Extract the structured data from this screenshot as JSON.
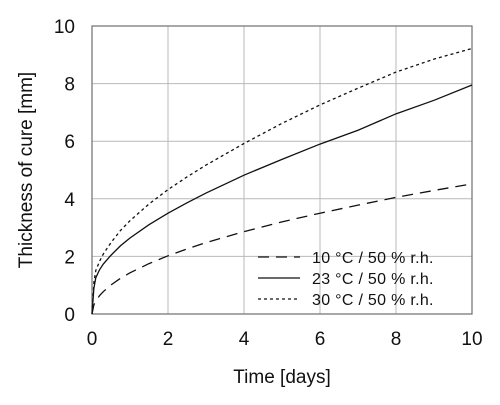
{
  "chart_data": {
    "type": "line",
    "title": "",
    "xlabel": "Time [days]",
    "ylabel": "Thickness of cure [mm]",
    "xlim": [
      0,
      10
    ],
    "ylim": [
      0,
      10
    ],
    "xticks": [
      "0",
      "2",
      "4",
      "6",
      "8",
      "10"
    ],
    "yticks": [
      "0",
      "2",
      "4",
      "6",
      "8",
      "10"
    ],
    "grid": true,
    "legend_position": "bottom-right",
    "x": [
      0,
      0.05,
      0.1,
      0.2,
      0.3,
      0.5,
      0.75,
      1,
      1.5,
      2,
      2.5,
      3,
      4,
      5,
      6,
      7,
      8,
      9,
      10
    ],
    "series": [
      {
        "name": "10 °C / 50 % r.h.",
        "style": "dashed",
        "values": [
          0,
          0.32,
          0.45,
          0.64,
          0.78,
          1.01,
          1.24,
          1.43,
          1.75,
          2.02,
          2.26,
          2.48,
          2.86,
          3.2,
          3.5,
          3.78,
          4.05,
          4.29,
          4.52
        ]
      },
      {
        "name": "23 °C / 50 % r.h.",
        "style": "solid",
        "values": [
          0,
          0.9,
          1.26,
          1.54,
          1.74,
          2.04,
          2.37,
          2.64,
          3.1,
          3.5,
          3.86,
          4.2,
          4.82,
          5.37,
          5.9,
          6.38,
          6.95,
          7.42,
          7.95
        ]
      },
      {
        "name": "30 °C / 50 % r.h.",
        "style": "dotted",
        "values": [
          0,
          1.1,
          1.51,
          1.83,
          2.09,
          2.48,
          2.9,
          3.24,
          3.82,
          4.32,
          4.76,
          5.17,
          5.92,
          6.62,
          7.26,
          7.84,
          8.4,
          8.85,
          9.22
        ]
      }
    ]
  }
}
